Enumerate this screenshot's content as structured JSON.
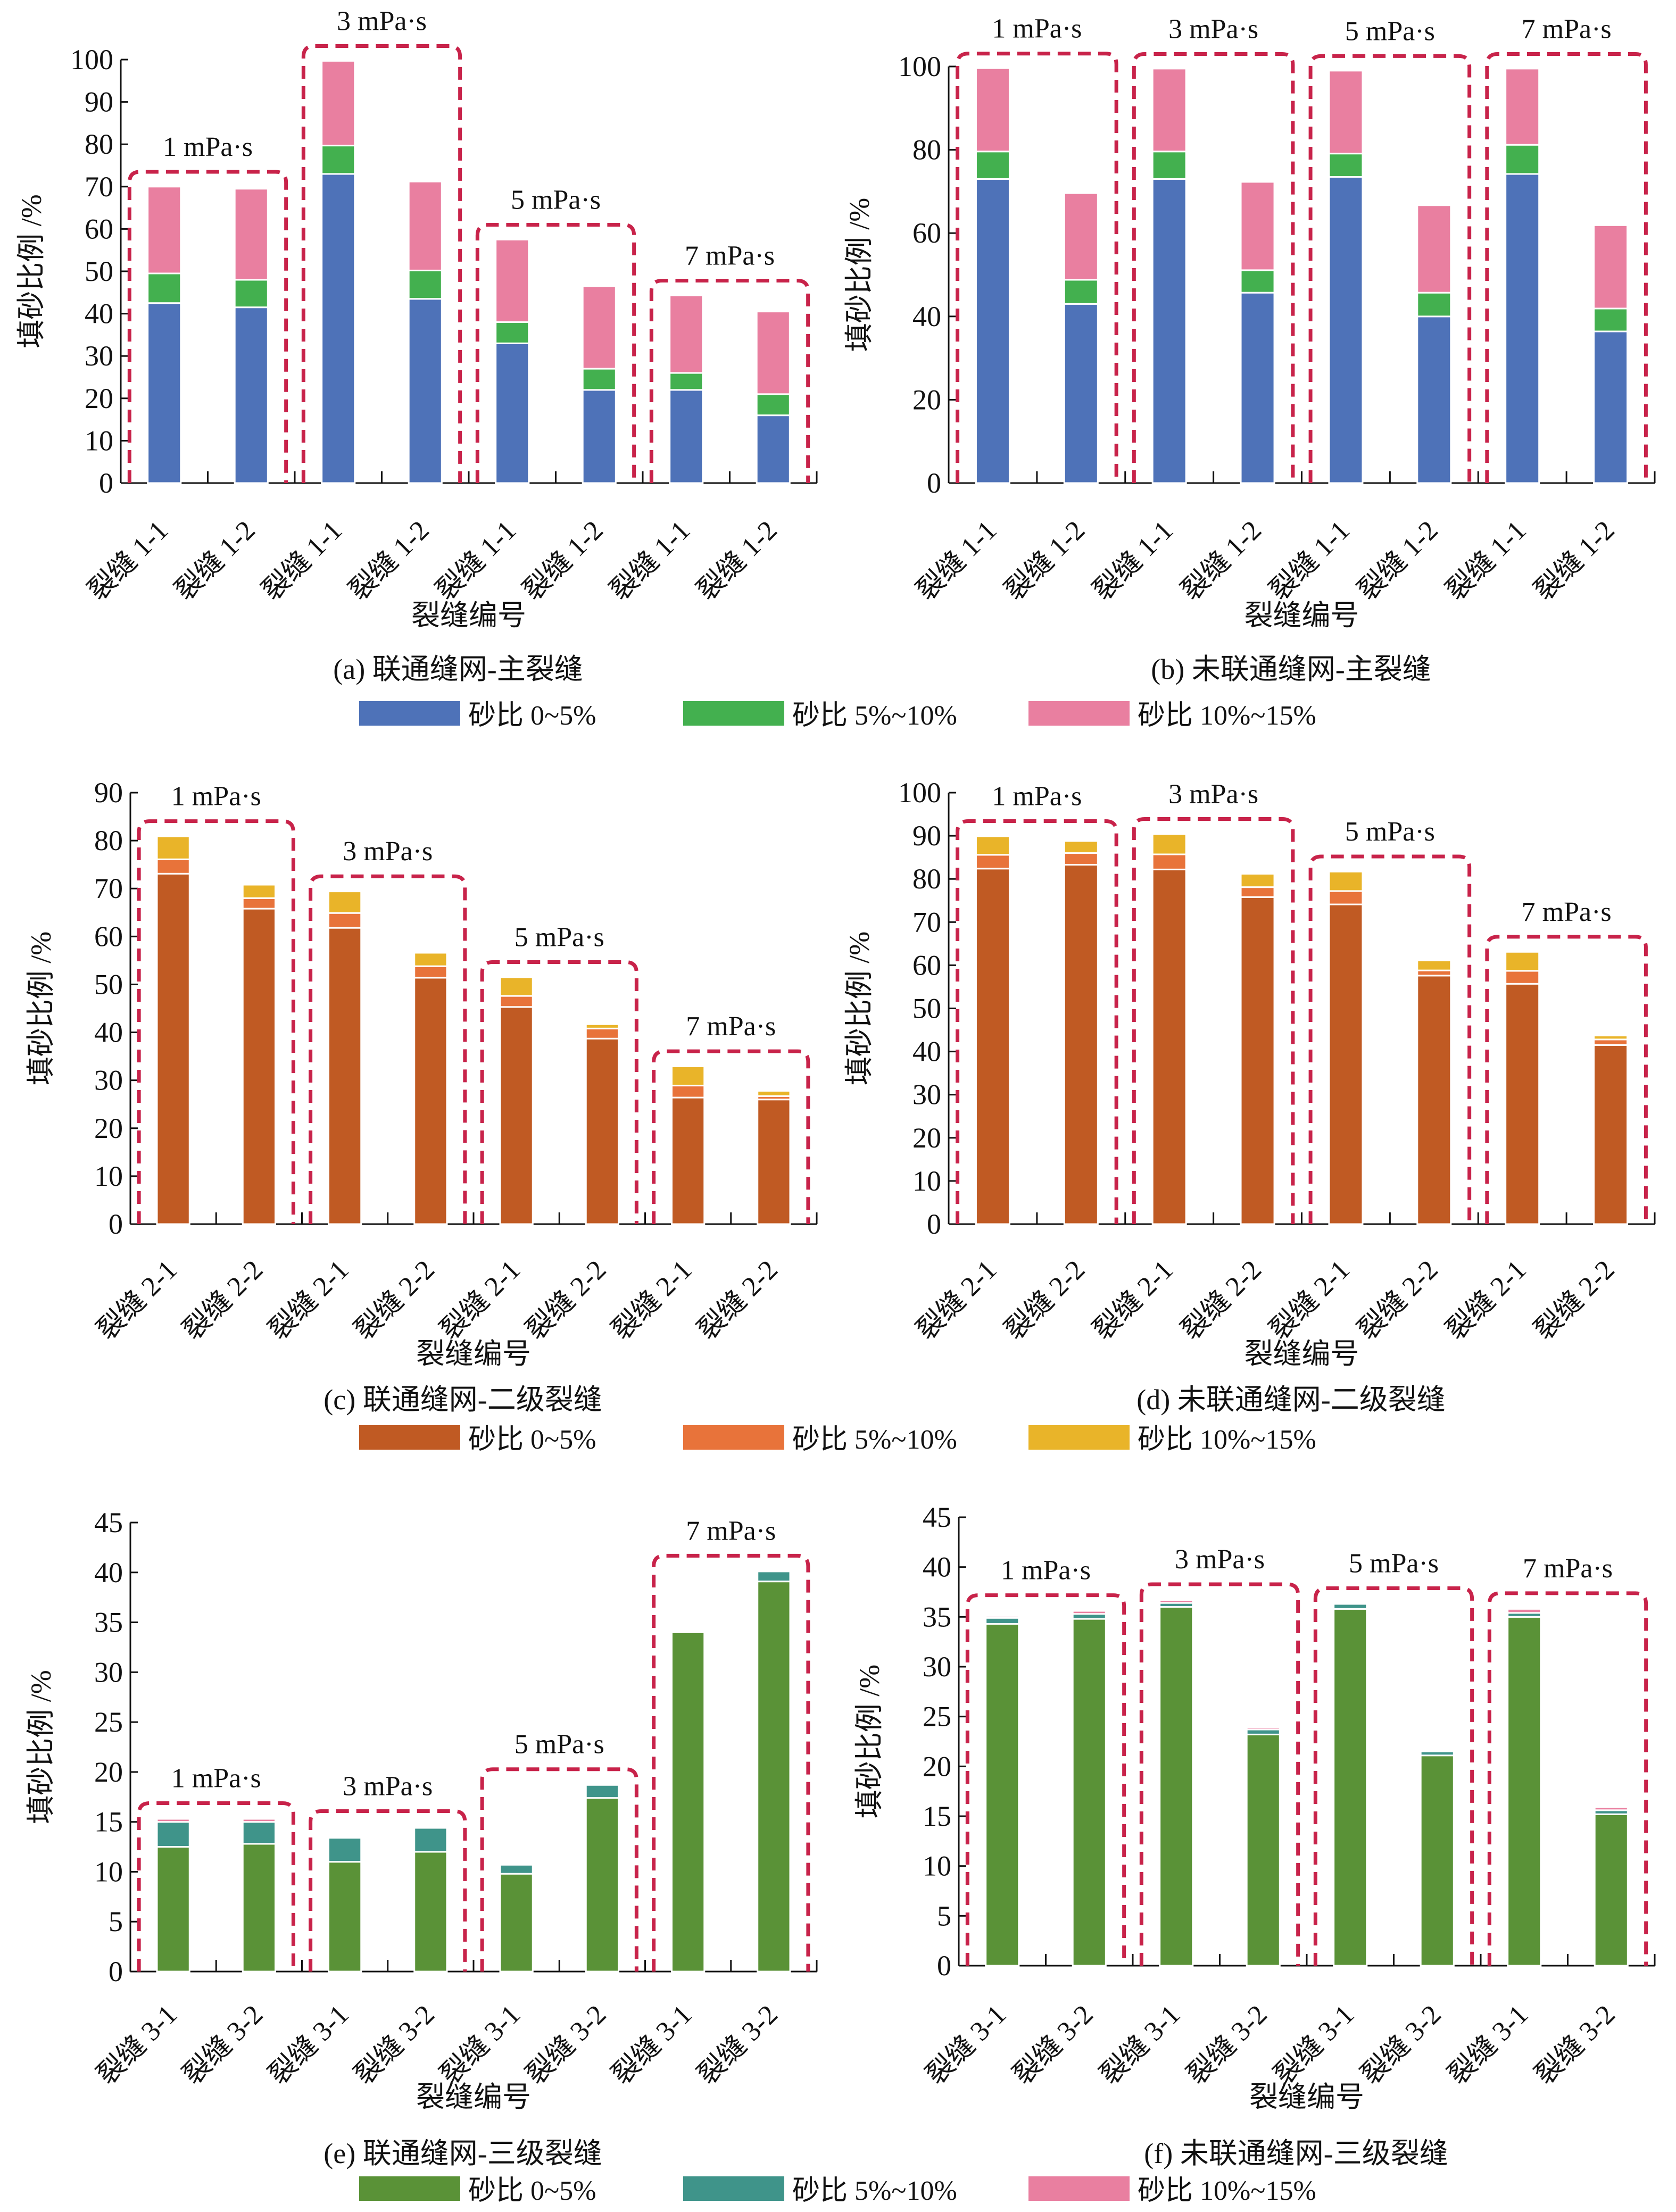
{
  "chart_data": [
    {
      "type": "bar",
      "stacked": true,
      "caption": "(a) 联通缝网-主裂缝",
      "xlabel": "裂缝编号",
      "ylabel": "填砂比例 /%",
      "ylim": [
        0,
        100
      ],
      "ytick_step": 10,
      "yticks": [
        "0",
        "10",
        "20",
        "30",
        "40",
        "50",
        "60",
        "70",
        "80",
        "90",
        "100"
      ],
      "categories": [
        "裂缝 1-1",
        "裂缝 1-2",
        "裂缝 1-1",
        "裂缝 1-2",
        "裂缝 1-1",
        "裂缝 1-2",
        "裂缝 1-1",
        "裂缝 1-2"
      ],
      "groups": [
        "1 mPa·s",
        "3 mPa·s",
        "5 mPa·s",
        "7 mPa·s"
      ],
      "series": [
        {
          "name": "砂比 0~5%",
          "color": "#4e72b8",
          "values": [
            42.5,
            41.5,
            73.0,
            43.5,
            33.0,
            22.0,
            22.0,
            16.0
          ]
        },
        {
          "name": "砂比 5%~10%",
          "color": "#43b04f",
          "values": [
            7.0,
            6.5,
            6.7,
            6.7,
            5.0,
            5.0,
            4.0,
            5.0
          ]
        },
        {
          "name": "砂比 10%~15%",
          "color": "#e97fa0",
          "values": [
            20.5,
            21.5,
            20.0,
            21.0,
            19.5,
            19.5,
            18.3,
            19.5
          ]
        }
      ]
    },
    {
      "type": "bar",
      "stacked": true,
      "caption": "(b) 未联通缝网-主裂缝",
      "xlabel": "裂缝编号",
      "ylabel": "填砂比例 /%",
      "ylim": [
        0,
        100
      ],
      "ytick_step": 20,
      "yticks": [
        "0",
        "20",
        "40",
        "60",
        "80",
        "100"
      ],
      "categories": [
        "裂缝 1-1",
        "裂缝 1-2",
        "裂缝 1-1",
        "裂缝 1-2",
        "裂缝 1-1",
        "裂缝 1-2",
        "裂缝 1-1",
        "裂缝 1-2"
      ],
      "groups": [
        "1 mPa·s",
        "3 mPa·s",
        "5 mPa·s",
        "7 mPa·s"
      ],
      "series": [
        {
          "color": "#4e72b8",
          "values": [
            73.0,
            43.0,
            73.0,
            45.7,
            73.5,
            40.0,
            74.2,
            36.4
          ]
        },
        {
          "color": "#43b04f",
          "values": [
            6.6,
            5.8,
            6.6,
            5.4,
            5.6,
            5.7,
            7.0,
            5.5
          ]
        },
        {
          "color": "#e97fa0",
          "values": [
            20.0,
            20.8,
            19.9,
            21.2,
            19.9,
            21.0,
            18.3,
            20.0
          ]
        }
      ]
    },
    {
      "type": "bar",
      "stacked": true,
      "caption": "(c) 联通缝网-二级裂缝",
      "xlabel": "裂缝编号",
      "ylabel": "填砂比例 /%",
      "ylim": [
        0,
        90
      ],
      "ytick_step": 10,
      "yticks": [
        "0",
        "10",
        "20",
        "30",
        "40",
        "50",
        "60",
        "70",
        "80",
        "90"
      ],
      "categories": [
        "裂缝 2-1",
        "裂缝 2-2",
        "裂缝 2-1",
        "裂缝 2-2",
        "裂缝 2-1",
        "裂缝 2-2",
        "裂缝 2-1",
        "裂缝 2-2"
      ],
      "groups": [
        "1 mPa·s",
        "3 mPa·s",
        "5 mPa·s",
        "7 mPa·s"
      ],
      "series": [
        {
          "name": "砂比 0~5%",
          "color": "#c05a23",
          "values": [
            73.1,
            65.8,
            61.8,
            51.4,
            45.3,
            38.7,
            26.4,
            26.0
          ]
        },
        {
          "name": "砂比 5%~10%",
          "color": "#e8733a",
          "values": [
            3.0,
            2.2,
            3.1,
            2.4,
            2.3,
            2.1,
            2.5,
            0.7
          ]
        },
        {
          "name": "砂比 10%~15%",
          "color": "#e9b429",
          "values": [
            4.8,
            2.8,
            4.5,
            2.8,
            3.9,
            0.9,
            4.0,
            1.1
          ]
        }
      ]
    },
    {
      "type": "bar",
      "stacked": true,
      "caption": "(d) 未联通缝网-二级裂缝",
      "xlabel": "裂缝编号",
      "ylabel": "填砂比例 /%",
      "ylim": [
        0,
        100
      ],
      "ytick_step": 10,
      "yticks": [
        "0",
        "10",
        "20",
        "30",
        "40",
        "50",
        "60",
        "70",
        "80",
        "90",
        "100"
      ],
      "categories": [
        "裂缝 2-1",
        "裂缝 2-2",
        "裂缝 2-1",
        "裂缝 2-2",
        "裂缝 2-1",
        "裂缝 2-2",
        "裂缝 2-1",
        "裂缝 2-2"
      ],
      "groups": [
        "1 mPa·s",
        "3 mPa·s",
        "5 mPa·s",
        "7 mPa·s"
      ],
      "series": [
        {
          "color": "#c05a23",
          "values": [
            82.4,
            83.3,
            82.2,
            75.8,
            74.1,
            57.6,
            55.7,
            41.5
          ]
        },
        {
          "color": "#e8733a",
          "values": [
            3.2,
            2.7,
            3.5,
            2.3,
            3.1,
            1.2,
            3.0,
            1.3
          ]
        },
        {
          "color": "#e9b429",
          "values": [
            4.3,
            2.8,
            4.7,
            3.1,
            4.5,
            2.3,
            4.4,
            0.9
          ]
        }
      ]
    },
    {
      "type": "bar",
      "stacked": true,
      "caption": "(e) 联通缝网-三级裂缝",
      "xlabel": "裂缝编号",
      "ylabel": "填砂比例 /%",
      "ylim": [
        0,
        45
      ],
      "ytick_step": 5,
      "yticks": [
        "0",
        "5",
        "10",
        "15",
        "20",
        "25",
        "30",
        "35",
        "40",
        "45"
      ],
      "categories": [
        "裂缝 3-1",
        "裂缝 3-2",
        "裂缝 3-1",
        "裂缝 3-2",
        "裂缝 3-1",
        "裂缝 3-2",
        "裂缝 3-1",
        "裂缝 3-2"
      ],
      "groups": [
        "1 mPa·s",
        "3 mPa·s",
        "5 mPa·s",
        "7 mPa·s"
      ],
      "series": [
        {
          "name": "砂比 0~5%",
          "color": "#5a9237",
          "values": [
            12.5,
            12.8,
            11.0,
            12.0,
            9.8,
            17.4,
            34.0,
            39.1
          ]
        },
        {
          "name": "砂比 5%~10%",
          "color": "#3f948a",
          "values": [
            2.5,
            2.2,
            2.4,
            2.4,
            0.9,
            1.3,
            0.0,
            1.0
          ]
        },
        {
          "name": "砂比 10%~15%",
          "color": "#e97fa0",
          "values": [
            0.3,
            0.3,
            0.0,
            0.1,
            0.0,
            0.0,
            0.0,
            0.0
          ]
        }
      ]
    },
    {
      "type": "bar",
      "stacked": true,
      "caption": "(f) 未联通缝网-三级裂缝",
      "xlabel": "裂缝编号",
      "ylabel": "填砂比例 /%",
      "ylim": [
        0,
        45
      ],
      "ytick_step": 5,
      "yticks": [
        "0",
        "5",
        "10",
        "15",
        "20",
        "25",
        "30",
        "35",
        "40",
        "45"
      ],
      "categories": [
        "裂缝 3-1",
        "裂缝 3-2",
        "裂缝 3-1",
        "裂缝 3-2",
        "裂缝 3-1",
        "裂缝 3-2",
        "裂缝 3-1",
        "裂缝 3-2"
      ],
      "groups": [
        "1 mPa·s",
        "3 mPa·s",
        "5 mPa·s",
        "7 mPa·s"
      ],
      "series": [
        {
          "color": "#5a9237",
          "values": [
            34.3,
            34.8,
            36.0,
            23.2,
            35.8,
            21.1,
            35.0,
            15.2
          ]
        },
        {
          "color": "#3f948a",
          "values": [
            0.6,
            0.5,
            0.4,
            0.5,
            0.5,
            0.4,
            0.4,
            0.4
          ]
        },
        {
          "color": "#e97fa0",
          "values": [
            0.2,
            0.3,
            0.3,
            0.2,
            0.0,
            0.0,
            0.4,
            0.3
          ]
        }
      ]
    }
  ],
  "group_box_color": "#c8234a"
}
